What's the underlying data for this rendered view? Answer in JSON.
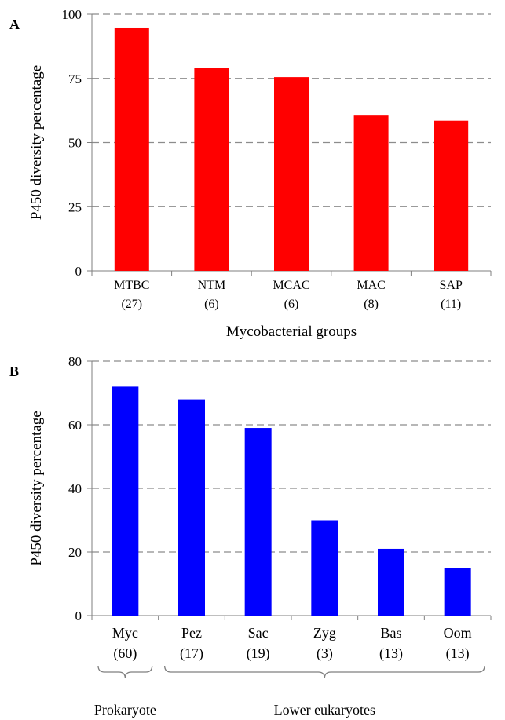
{
  "chart_data": [
    {
      "type": "bar",
      "panel_label": "A",
      "title": "",
      "xlabel": "Mycobacterial groups",
      "ylabel": "P450 diversity percentage",
      "categories": [
        "MTBC",
        "NTM",
        "MCAC",
        "MAC",
        "SAP"
      ],
      "category_counts": [
        "(27)",
        "(6)",
        "(6)",
        "(8)",
        "(11)"
      ],
      "values": [
        94.5,
        79,
        75.5,
        60.5,
        58.5
      ],
      "ylim": [
        0,
        100
      ],
      "yticks": [
        "0",
        "25",
        "50",
        "75",
        "100"
      ],
      "grid": true,
      "bar_color": "#ff0000"
    },
    {
      "type": "bar",
      "panel_label": "B",
      "title": "",
      "xlabel": "",
      "ylabel": "P450 diversity percentage",
      "categories": [
        "Myc",
        "Pez",
        "Sac",
        "Zyg",
        "Bas",
        "Oom"
      ],
      "category_counts": [
        "(60)",
        "(17)",
        "(19)",
        "(3)",
        "(13)",
        "(13)"
      ],
      "values": [
        72,
        68,
        59,
        30,
        21,
        15
      ],
      "ylim": [
        0,
        80
      ],
      "yticks": [
        "0",
        "20",
        "40",
        "60",
        "80"
      ],
      "grid": true,
      "bar_color": "#0000ff",
      "groups": [
        {
          "label": "Prokaryote",
          "from": 0,
          "to": 0
        },
        {
          "label": "Lower eukaryotes",
          "from": 1,
          "to": 5
        }
      ]
    }
  ]
}
